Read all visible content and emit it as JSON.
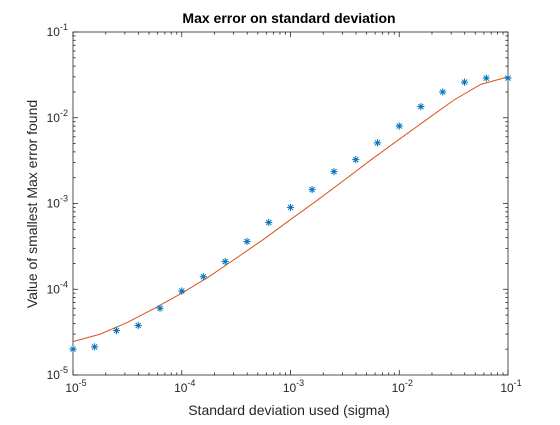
{
  "chart_data": {
    "type": "scatter",
    "title": "Max error on standard deviation",
    "xlabel": "Standard deviation used (sigma)",
    "ylabel": "Value of smallest Max error found",
    "xscale": "log",
    "yscale": "log",
    "xlim": [
      1e-05,
      0.1
    ],
    "ylim": [
      1e-05,
      0.1
    ],
    "grid": false,
    "legend": "none",
    "x_ticks": [
      {
        "base": "10",
        "exp": "-5"
      },
      {
        "base": "10",
        "exp": "-4"
      },
      {
        "base": "10",
        "exp": "-3"
      },
      {
        "base": "10",
        "exp": "-2"
      },
      {
        "base": "10",
        "exp": "-1"
      }
    ],
    "y_ticks": [
      {
        "base": "10",
        "exp": "-5"
      },
      {
        "base": "10",
        "exp": "-4"
      },
      {
        "base": "10",
        "exp": "-3"
      },
      {
        "base": "10",
        "exp": "-2"
      },
      {
        "base": "10",
        "exp": "-1"
      }
    ],
    "series": [
      {
        "marker": "*",
        "color": "#0072BD",
        "x": [
          1e-05,
          1.58e-05,
          2.51e-05,
          3.98e-05,
          6.31e-05,
          0.0001,
          0.000158,
          0.000251,
          0.000398,
          0.000631,
          0.001,
          0.00158,
          0.00251,
          0.00398,
          0.00631,
          0.01,
          0.0158,
          0.0251,
          0.0398,
          0.0631,
          0.1
        ],
        "y": [
          2e-05,
          2.13e-05,
          3.3e-05,
          3.78e-05,
          6e-05,
          9.55e-05,
          0.00014,
          0.00021,
          0.00036,
          0.0006,
          0.0009,
          0.00145,
          0.00235,
          0.00325,
          0.0051,
          0.008,
          0.0135,
          0.02,
          0.026,
          0.029,
          0.029
        ]
      },
      {
        "marker": "none",
        "line": "solid",
        "color": "#D95319",
        "x": [
          1e-05,
          1.78e-05,
          3.16e-05,
          5.62e-05,
          0.0001,
          0.000178,
          0.000316,
          0.000562,
          0.001,
          0.00178,
          0.00316,
          0.00562,
          0.01,
          0.0178,
          0.0316,
          0.0562,
          0.1
        ],
        "y": [
          2.45e-05,
          3e-05,
          4.1e-05,
          6e-05,
          9e-05,
          0.00014,
          0.00023,
          0.00038,
          0.00065,
          0.0011,
          0.0019,
          0.0033,
          0.0056,
          0.0095,
          0.016,
          0.0245,
          0.03
        ]
      }
    ]
  }
}
